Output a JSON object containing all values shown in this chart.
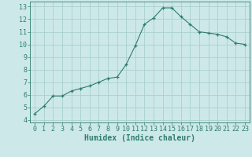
{
  "x": [
    0,
    1,
    2,
    3,
    4,
    5,
    6,
    7,
    8,
    9,
    10,
    11,
    12,
    13,
    14,
    15,
    16,
    17,
    18,
    19,
    20,
    21,
    22,
    23
  ],
  "y": [
    4.5,
    5.1,
    5.9,
    5.9,
    6.3,
    6.5,
    6.7,
    7.0,
    7.3,
    7.4,
    8.4,
    9.9,
    11.6,
    12.1,
    12.9,
    12.9,
    12.2,
    11.6,
    11.0,
    10.9,
    10.8,
    10.6,
    10.1,
    10.0
  ],
  "line_color": "#2e7d6e",
  "marker": "+",
  "bg_color": "#cde8e8",
  "grid_color": "#aacfcf",
  "xlabel": "Humidex (Indice chaleur)",
  "xlim": [
    -0.5,
    23.5
  ],
  "ylim": [
    3.8,
    13.4
  ],
  "yticks": [
    4,
    5,
    6,
    7,
    8,
    9,
    10,
    11,
    12,
    13
  ],
  "xticks": [
    0,
    1,
    2,
    3,
    4,
    5,
    6,
    7,
    8,
    9,
    10,
    11,
    12,
    13,
    14,
    15,
    16,
    17,
    18,
    19,
    20,
    21,
    22,
    23
  ],
  "tick_fontsize": 6,
  "xlabel_fontsize": 7,
  "label_color": "#2e7d6e"
}
